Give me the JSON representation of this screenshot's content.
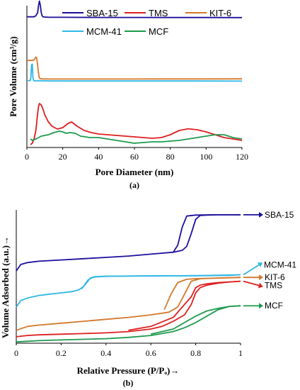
{
  "chart_data": [
    {
      "type": "line",
      "subfigure_label": "(a)",
      "xlabel": "Pore Diameter (nm)",
      "ylabel": "Pore Volume (cm³/g)",
      "xlim": [
        0,
        120
      ],
      "xticks": [
        "0",
        "20",
        "40",
        "60",
        "80",
        "100",
        "120"
      ],
      "y_ticks_shown": false,
      "legend": {
        "placement": "top",
        "entries": [
          "SBA-15",
          "TMS",
          "KIT-6",
          "MCM-41",
          "MCF"
        ]
      },
      "series": [
        {
          "name": "SBA-15",
          "color": "#1c0f9c",
          "x": [
            0,
            4,
            5,
            6,
            6.5,
            7,
            7.5,
            8,
            8.5,
            9,
            10,
            12,
            20,
            40,
            60,
            80,
            100,
            120
          ],
          "y": [
            0.68,
            0.68,
            0.7,
            0.76,
            0.9,
            0.98,
            0.9,
            0.76,
            0.7,
            0.68,
            0.676,
            0.672,
            0.67,
            0.668,
            0.667,
            0.666,
            0.666,
            0.665
          ]
        },
        {
          "name": "KIT-6",
          "color": "#d4782a",
          "x": [
            0,
            3.5,
            4,
            4.5,
            5,
            5.5,
            6,
            6.3,
            6.8,
            7.3,
            8,
            9,
            12,
            20,
            40,
            60,
            80,
            100,
            120
          ],
          "y": [
            0.66,
            0.66,
            0.67,
            0.69,
            0.72,
            0.7,
            0.58,
            0.48,
            0.37,
            0.34,
            0.335,
            0.333,
            0.333,
            0.333,
            0.333,
            0.333,
            0.334,
            0.334,
            0.335
          ]
        },
        {
          "name": "MCM-41",
          "color": "#2fb7e4",
          "x": [
            0,
            1.8,
            2.2,
            2.6,
            3.0,
            3.4,
            3.8,
            4.2,
            5,
            8,
            15,
            30,
            60,
            90,
            120
          ],
          "y": [
            0.33,
            0.33,
            0.38,
            0.6,
            0.62,
            0.38,
            0.33,
            0.325,
            0.325,
            0.325,
            0.322,
            0.322,
            0.322,
            0.322,
            0.32
          ]
        },
        {
          "name": "TMS",
          "color": "#dd1f1f",
          "x": [
            2,
            3,
            4,
            5,
            6,
            6.5,
            7,
            8,
            9,
            10,
            12,
            14,
            17,
            20,
            23,
            25,
            28,
            32,
            36,
            40,
            45,
            50,
            55,
            60,
            65,
            70,
            75,
            80,
            85,
            90,
            95,
            100,
            105,
            110,
            115,
            120
          ],
          "y": [
            0.0,
            0.01,
            0.04,
            0.1,
            0.22,
            0.27,
            0.29,
            0.28,
            0.25,
            0.21,
            0.16,
            0.13,
            0.11,
            0.12,
            0.15,
            0.16,
            0.13,
            0.1,
            0.085,
            0.075,
            0.07,
            0.065,
            0.06,
            0.055,
            0.05,
            0.045,
            0.05,
            0.07,
            0.1,
            0.112,
            0.105,
            0.09,
            0.07,
            0.05,
            0.04,
            0.03
          ]
        },
        {
          "name": "MCF",
          "color": "#1f9a4e",
          "x": [
            2,
            3,
            5,
            8,
            12,
            15,
            18,
            20,
            22,
            24,
            27,
            30,
            35,
            40,
            45,
            50,
            55,
            60,
            65,
            70,
            75,
            80,
            85,
            90,
            95,
            100,
            105,
            110,
            115,
            120
          ],
          "y": [
            0.02,
            0.01,
            0.02,
            0.04,
            0.05,
            0.065,
            0.075,
            0.07,
            0.06,
            0.065,
            0.06,
            0.04,
            0.03,
            0.03,
            0.02,
            0.01,
            0.0,
            -0.01,
            -0.005,
            0.0,
            0.0,
            0.005,
            0.01,
            0.02,
            0.03,
            0.04,
            0.05,
            0.05,
            0.03,
            0.02
          ]
        }
      ]
    },
    {
      "type": "line",
      "subfigure_label": "(b)",
      "xlabel": "Relative Pressure (P/Pₒ)→",
      "ylabel": "Volume Adsorbed (a.u.)→",
      "xlim": [
        0,
        1
      ],
      "xticks": [
        "0",
        "0.2",
        "0.4",
        "0.6",
        "0.8",
        "1"
      ],
      "y_ticks_shown": false,
      "end_labels": [
        "SBA-15",
        "MCM-41",
        "KIT-6",
        "TMS",
        "MCF"
      ],
      "series": [
        {
          "name": "SBA-15",
          "color": "#1c0f9c",
          "adsorption": {
            "x": [
              0,
              0.02,
              0.05,
              0.1,
              0.2,
              0.3,
              0.4,
              0.5,
              0.6,
              0.7,
              0.74,
              0.76,
              0.78,
              0.8,
              0.82,
              0.85,
              0.9,
              0.95,
              1.0
            ],
            "y": [
              0.56,
              0.61,
              0.625,
              0.635,
              0.645,
              0.655,
              0.665,
              0.675,
              0.69,
              0.705,
              0.72,
              0.75,
              0.85,
              0.96,
              0.99,
              0.993,
              0.995,
              0.995,
              0.995
            ]
          },
          "desorption": {
            "x": [
              1.0,
              0.9,
              0.8,
              0.76,
              0.74,
              0.72,
              0.7
            ],
            "y": [
              0.995,
              0.995,
              0.993,
              0.985,
              0.9,
              0.76,
              0.705
            ]
          }
        },
        {
          "name": "MCM-41",
          "color": "#2fb7e4",
          "adsorption": {
            "x": [
              0,
              0.02,
              0.05,
              0.1,
              0.15,
              0.2,
              0.25,
              0.28,
              0.3,
              0.32,
              0.34,
              0.36,
              0.4,
              0.5,
              0.6,
              0.7,
              0.8,
              0.9,
              0.95,
              1.0
            ],
            "y": [
              0.28,
              0.33,
              0.35,
              0.37,
              0.38,
              0.39,
              0.4,
              0.415,
              0.44,
              0.49,
              0.51,
              0.515,
              0.518,
              0.52,
              0.521,
              0.522,
              0.523,
              0.524,
              0.525,
              0.53
            ]
          },
          "desorption": {
            "x": [
              1.0,
              0.8,
              0.6,
              0.4,
              0.35,
              0.33,
              0.31,
              0.29
            ],
            "y": [
              0.53,
              0.523,
              0.522,
              0.519,
              0.515,
              0.505,
              0.46,
              0.42
            ]
          }
        },
        {
          "name": "KIT-6",
          "color": "#d4782a",
          "adsorption": {
            "x": [
              0,
              0.05,
              0.1,
              0.2,
              0.3,
              0.4,
              0.5,
              0.6,
              0.68,
              0.72,
              0.75,
              0.78,
              0.82,
              0.9,
              1.0
            ],
            "y": [
              0.1,
              0.13,
              0.14,
              0.155,
              0.17,
              0.185,
              0.2,
              0.22,
              0.24,
              0.28,
              0.38,
              0.48,
              0.5,
              0.505,
              0.51
            ]
          },
          "desorption": {
            "x": [
              1.0,
              0.9,
              0.8,
              0.76,
              0.72,
              0.69,
              0.66
            ],
            "y": [
              0.51,
              0.505,
              0.5,
              0.495,
              0.47,
              0.38,
              0.26
            ]
          }
        },
        {
          "name": "TMS",
          "color": "#dd1f1f",
          "adsorption": {
            "x": [
              0,
              0.05,
              0.1,
              0.2,
              0.3,
              0.4,
              0.5,
              0.6,
              0.65,
              0.7,
              0.75,
              0.78,
              0.8,
              0.82,
              0.85,
              0.9,
              0.95,
              1.0
            ],
            "y": [
              0.05,
              0.06,
              0.065,
              0.07,
              0.075,
              0.08,
              0.09,
              0.11,
              0.13,
              0.17,
              0.22,
              0.3,
              0.39,
              0.43,
              0.45,
              0.465,
              0.475,
              0.48
            ]
          },
          "desorption": {
            "x": [
              1.0,
              0.95,
              0.9,
              0.85,
              0.82,
              0.8,
              0.78,
              0.7,
              0.6,
              0.5
            ],
            "y": [
              0.48,
              0.475,
              0.47,
              0.46,
              0.45,
              0.43,
              0.36,
              0.2,
              0.13,
              0.1
            ]
          }
        },
        {
          "name": "MCF",
          "color": "#1f9a4e",
          "adsorption": {
            "x": [
              0,
              0.05,
              0.1,
              0.2,
              0.3,
              0.4,
              0.5,
              0.6,
              0.7,
              0.75,
              0.8,
              0.85,
              0.9,
              0.95,
              1.0
            ],
            "y": [
              0.01,
              0.015,
              0.02,
              0.025,
              0.03,
              0.035,
              0.045,
              0.06,
              0.09,
              0.12,
              0.16,
              0.21,
              0.26,
              0.285,
              0.29
            ]
          },
          "desorption": {
            "x": [
              1.0,
              0.95,
              0.9,
              0.85,
              0.8,
              0.75,
              0.7,
              0.6
            ],
            "y": [
              0.29,
              0.285,
              0.27,
              0.25,
              0.21,
              0.16,
              0.11,
              0.07
            ]
          }
        }
      ]
    }
  ]
}
